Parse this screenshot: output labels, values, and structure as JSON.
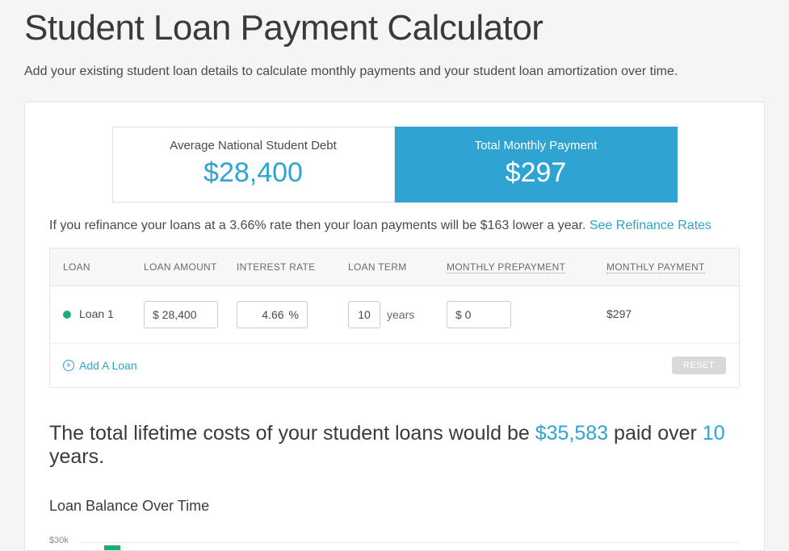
{
  "colors": {
    "accent": "#2fa3d1",
    "green": "#1aae6f",
    "page_bg": "#f5f5f5",
    "card_bg": "#ffffff",
    "border": "#e5e5e5",
    "text": "#4a4a4a",
    "muted": "#6b6b6b",
    "reset_bg": "#d9d9d9"
  },
  "header": {
    "title": "Student Loan Payment Calculator",
    "subtitle": "Add your existing student loan details to calculate monthly payments and your student loan amortization over time."
  },
  "summary": {
    "left_label": "Average National Student Debt",
    "left_value": "$28,400",
    "right_label": "Total Monthly Payment",
    "right_value": "$297"
  },
  "refinance": {
    "text": "If you refinance your loans at a 3.66% rate then your loan payments will be $163 lower a year. ",
    "link_text": "See Refinance Rates"
  },
  "table": {
    "headers": {
      "loan": "LOAN",
      "amount": "LOAN AMOUNT",
      "rate": "INTEREST RATE",
      "term": "LOAN TERM",
      "prepay": "MONTHLY PREPAYMENT",
      "payment": "MONTHLY PAYMENT"
    },
    "rows": [
      {
        "name": "Loan 1",
        "amount": "$ 28,400",
        "rate": "4.66",
        "rate_unit": "%",
        "term": "10",
        "term_unit": "years",
        "prepay": "$ 0",
        "payment": "$297"
      }
    ],
    "add_label": "Add A Loan",
    "reset_label": "RESET"
  },
  "lifetime": {
    "prefix": "The total lifetime costs of your student loans would be ",
    "cost": "$35,583",
    "mid": " paid over ",
    "years": "10",
    "suffix": " years."
  },
  "chart": {
    "title": "Loan Balance Over Time",
    "ytick_top": "$30k",
    "type": "bar",
    "bar_color": "#1aae6f",
    "grid_color": "#eeeeee"
  }
}
